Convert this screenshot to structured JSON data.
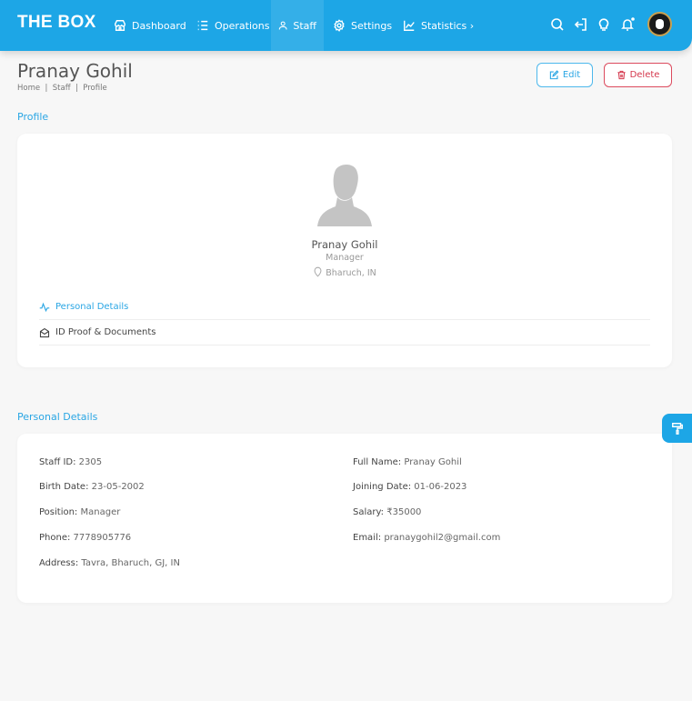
{
  "nav": {
    "logo": "THE BOX",
    "items": [
      {
        "label": "Dashboard",
        "icon": "store-icon"
      },
      {
        "label": "Operations",
        "icon": "list-icon"
      },
      {
        "label": "Staff",
        "icon": "user-icon"
      },
      {
        "label": "Settings",
        "icon": "gear-icon"
      },
      {
        "label": "Statistics ›",
        "icon": "chart-line-icon"
      }
    ],
    "active": "Staff"
  },
  "page": {
    "title": "Pranay Gohil",
    "breadcrumb": "Home  |  Staff  |  Profile",
    "edit_label": "Edit",
    "delete_label": "Delete"
  },
  "profile": {
    "section": "Profile",
    "name": "Pranay Gohil",
    "role": "Manager",
    "location": "Bharuch, IN",
    "tabs": [
      {
        "label": "Personal Details",
        "active": true
      },
      {
        "label": "ID Proof & Documents",
        "active": false
      }
    ]
  },
  "details": {
    "section": "Personal Details",
    "left": [
      {
        "label": "Staff ID:",
        "value": "2305"
      },
      {
        "label": "Birth Date:",
        "value": "23-05-2002"
      },
      {
        "label": "Position:",
        "value": "Manager"
      },
      {
        "label": "Phone:",
        "value": "7778905776"
      },
      {
        "label": "Address:",
        "value": "Tavra, Bharuch, GJ, IN"
      }
    ],
    "right": [
      {
        "label": "Full Name:",
        "value": "Pranay Gohil"
      },
      {
        "label": "Joining Date:",
        "value": "01-06-2023"
      },
      {
        "label": "Salary:",
        "value": "₹35000"
      },
      {
        "label": "Email:",
        "value": "pranaygohil2@gmail.com"
      }
    ]
  },
  "colors": {
    "primary": "#1da6e6",
    "danger": "#dc4b5e"
  }
}
